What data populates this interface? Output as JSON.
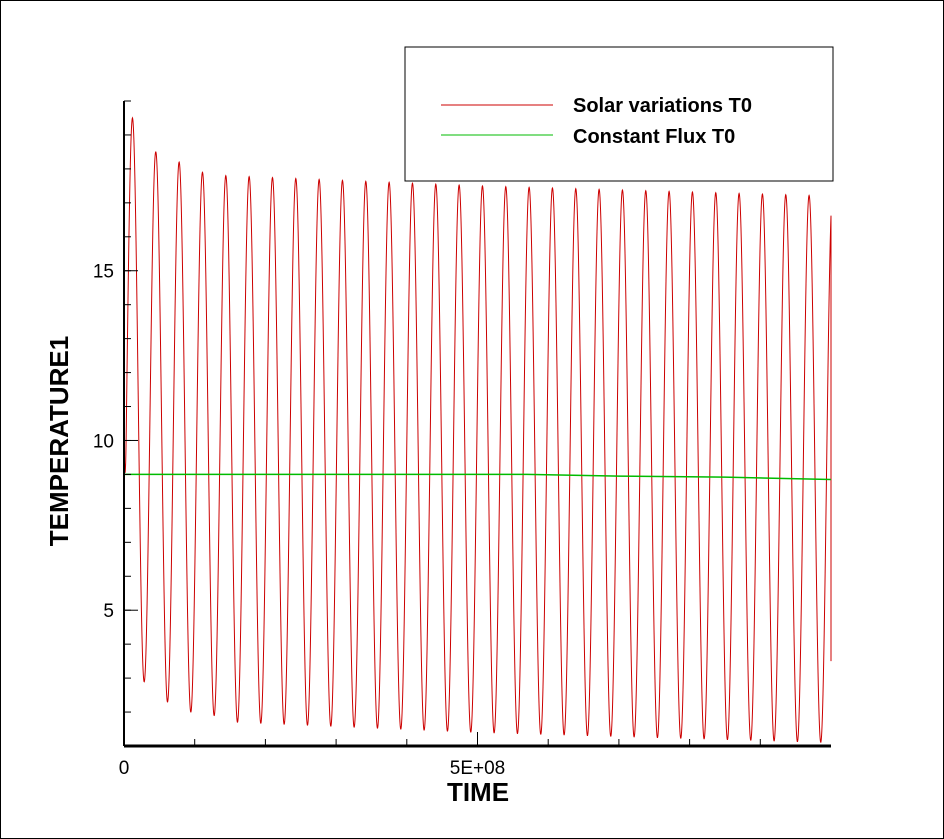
{
  "chart_data": {
    "type": "line",
    "title": "",
    "xlabel": "TIME",
    "ylabel": "TEMPERATURE1",
    "xlim": [
      0,
      1000000000
    ],
    "ylim": [
      1,
      20
    ],
    "x_ticks": [
      {
        "value": 0,
        "label": "0"
      },
      {
        "value": 500000000,
        "label": "5E+08"
      }
    ],
    "y_ticks": [
      {
        "value": 5,
        "label": "5"
      },
      {
        "value": 10,
        "label": "10"
      },
      {
        "value": 15,
        "label": "15"
      }
    ],
    "x_minor_step": 100000000,
    "y_minor_step": 1,
    "grid": false,
    "legend_position": "top-right",
    "series": [
      {
        "name": "Solar variations T0",
        "color": "#cc0000",
        "oscillation": {
          "period": 33000000,
          "x_end": 1000000000,
          "start_value": 10,
          "peaks": [
            {
              "x": 12000000,
              "y": 19.5
            },
            {
              "x": 45000000,
              "y": 18.5
            },
            {
              "x": 78000000,
              "y": 18.2
            },
            {
              "x": 111000000,
              "y": 17.9
            },
            {
              "x": 144000000,
              "y": 17.8
            },
            {
              "x": 500000000,
              "y": 17.5
            },
            {
              "x": 1000000000,
              "y": 17.2
            }
          ],
          "troughs": [
            {
              "x": 28000000,
              "y": 2.9
            },
            {
              "x": 61000000,
              "y": 2.3
            },
            {
              "x": 94000000,
              "y": 2.0
            },
            {
              "x": 127000000,
              "y": 1.9
            },
            {
              "x": 160000000,
              "y": 1.7
            },
            {
              "x": 500000000,
              "y": 1.4
            },
            {
              "x": 1000000000,
              "y": 1.1
            }
          ],
          "end_value": 3.5
        }
      },
      {
        "name": "Constant Flux T0",
        "color": "#00bb00",
        "points": [
          {
            "x": 0,
            "y": 9.0
          },
          {
            "x": 570000000,
            "y": 9.0
          },
          {
            "x": 700000000,
            "y": 8.95
          },
          {
            "x": 850000000,
            "y": 8.92
          },
          {
            "x": 1000000000,
            "y": 8.85
          }
        ]
      }
    ]
  }
}
